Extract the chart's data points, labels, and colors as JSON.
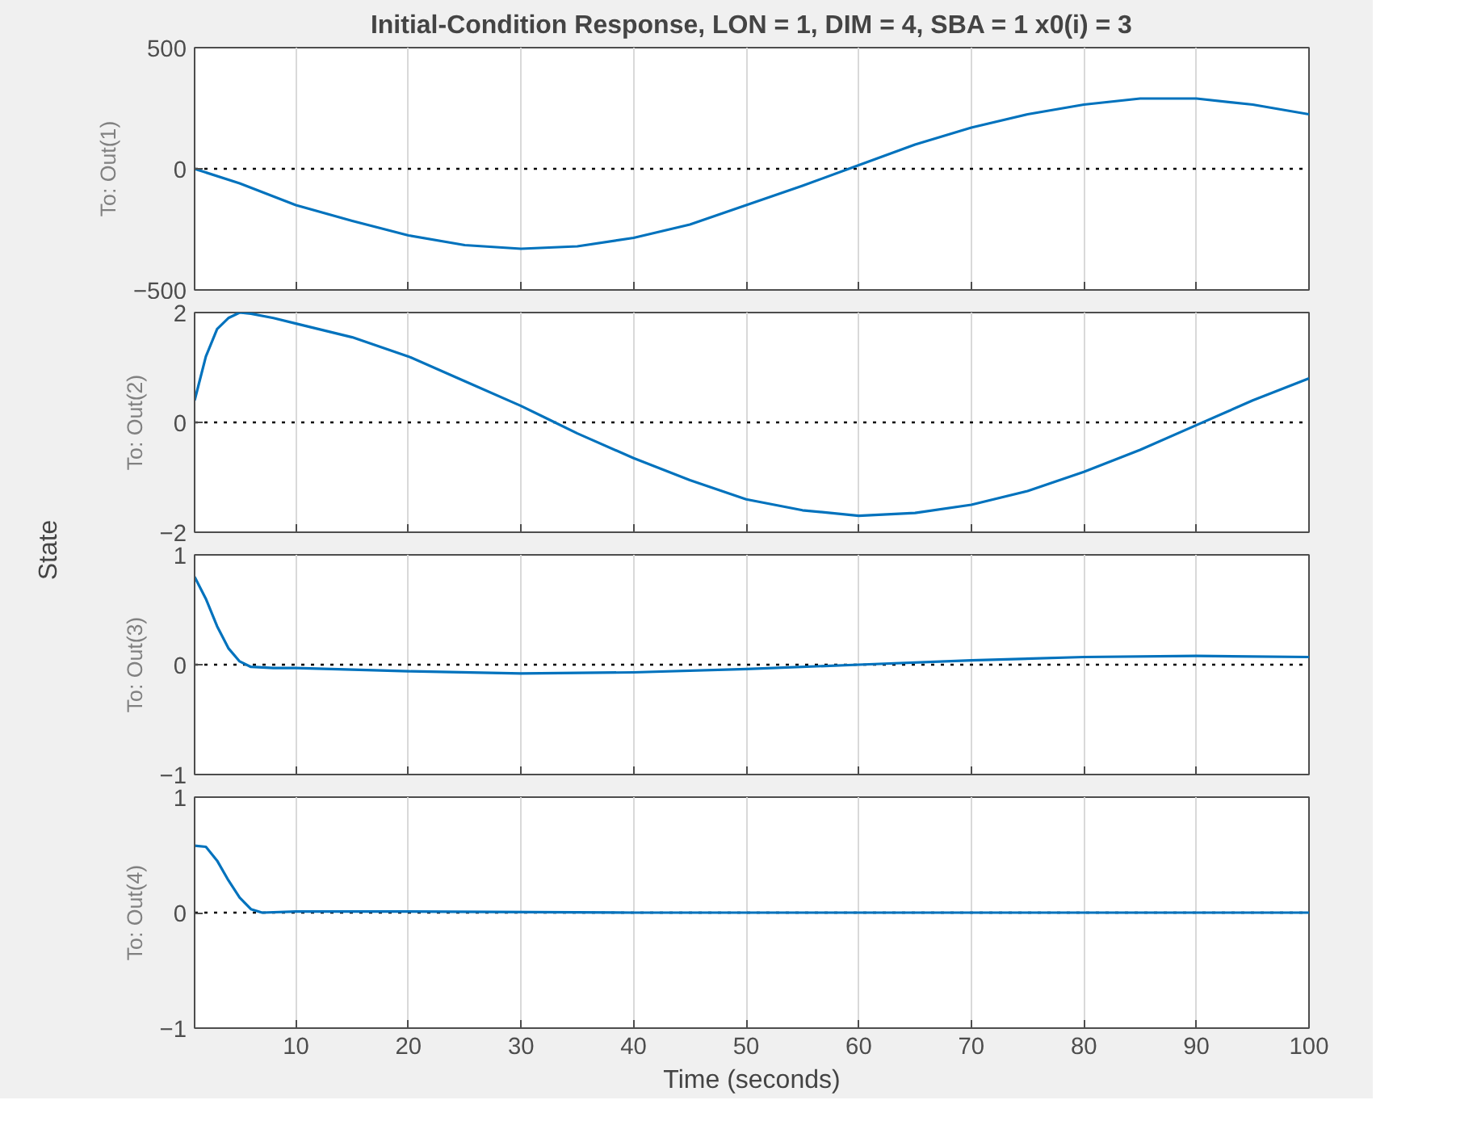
{
  "chart_data": [
    {
      "type": "line",
      "title": "Initial-Condition Response, LON = 1, DIM = 4, SBA = 1 x0(i) = 3",
      "ylabel": "To: Out(1)",
      "annotations": [
        "State"
      ],
      "x": [
        1,
        5,
        10,
        15,
        20,
        25,
        30,
        35,
        40,
        45,
        50,
        55,
        60,
        65,
        70,
        75,
        80,
        85,
        90,
        95,
        100
      ],
      "series": [
        {
          "color": "#0072bd",
          "values": [
            0,
            -60,
            -150,
            -215,
            -275,
            -315,
            -330,
            -320,
            -285,
            -230,
            -150,
            -70,
            15,
            100,
            170,
            225,
            265,
            290,
            290,
            265,
            225
          ]
        }
      ],
      "xlim": [
        1,
        100
      ],
      "xticks": [
        10,
        20,
        30,
        40,
        50,
        60,
        70,
        80,
        90,
        100
      ],
      "ylim": [
        -500,
        500
      ],
      "yticks": [
        -500,
        0,
        500
      ],
      "grid": "x",
      "tick_labels": "y",
      "line_style": "solid",
      "ref_lines": [
        {
          "axis": "y",
          "value": 0,
          "color": "#000000",
          "line_style": "dotted"
        }
      ]
    },
    {
      "type": "line",
      "ylabel": "To: Out(2)",
      "x": [
        1,
        2,
        3,
        4,
        5,
        6,
        8,
        10,
        15,
        20,
        25,
        30,
        33,
        35,
        40,
        45,
        50,
        55,
        60,
        65,
        70,
        75,
        80,
        85,
        90,
        95,
        100
      ],
      "series": [
        {
          "color": "#0072bd",
          "values": [
            0.4,
            1.2,
            1.7,
            1.9,
            2.0,
            1.98,
            1.9,
            1.8,
            1.55,
            1.2,
            0.75,
            0.3,
            0,
            -0.2,
            -0.65,
            -1.05,
            -1.4,
            -1.6,
            -1.7,
            -1.65,
            -1.5,
            -1.25,
            -0.9,
            -0.5,
            -0.05,
            0.4,
            0.8
          ]
        }
      ],
      "xlim": [
        1,
        100
      ],
      "xticks": [
        10,
        20,
        30,
        40,
        50,
        60,
        70,
        80,
        90,
        100
      ],
      "ylim": [
        -2,
        2
      ],
      "yticks": [
        -2,
        0,
        2
      ],
      "grid": "x",
      "tick_labels": "y",
      "line_style": "solid",
      "ref_lines": [
        {
          "axis": "y",
          "value": 0,
          "color": "#000000",
          "line_style": "dotted"
        }
      ]
    },
    {
      "type": "line",
      "ylabel": "To: Out(3)",
      "x": [
        1,
        2,
        3,
        4,
        5,
        6,
        8,
        10,
        20,
        30,
        40,
        50,
        60,
        70,
        80,
        90,
        100
      ],
      "series": [
        {
          "color": "#0072bd",
          "values": [
            0.8,
            0.6,
            0.35,
            0.15,
            0.03,
            -0.02,
            -0.03,
            -0.03,
            -0.06,
            -0.08,
            -0.07,
            -0.04,
            0,
            0.04,
            0.07,
            0.08,
            0.07
          ]
        }
      ],
      "xlim": [
        1,
        100
      ],
      "xticks": [
        10,
        20,
        30,
        40,
        50,
        60,
        70,
        80,
        90,
        100
      ],
      "ylim": [
        -1,
        1
      ],
      "yticks": [
        -1,
        0,
        1
      ],
      "grid": "x",
      "tick_labels": "y",
      "line_style": "solid",
      "ref_lines": [
        {
          "axis": "y",
          "value": 0,
          "color": "#000000",
          "line_style": "dotted"
        }
      ]
    },
    {
      "type": "line",
      "ylabel": "To: Out(4)",
      "xlabel": "Time (seconds)",
      "x": [
        1,
        2,
        3,
        4,
        5,
        6,
        7,
        10,
        20,
        40,
        60,
        80,
        100
      ],
      "series": [
        {
          "color": "#0072bd",
          "values": [
            0.58,
            0.57,
            0.45,
            0.28,
            0.13,
            0.03,
            0,
            0.01,
            0.01,
            0,
            0,
            0,
            0
          ]
        }
      ],
      "xlim": [
        1,
        100
      ],
      "xticks": [
        10,
        20,
        30,
        40,
        50,
        60,
        70,
        80,
        90,
        100
      ],
      "ylim": [
        -1,
        1
      ],
      "yticks": [
        -1,
        0,
        1
      ],
      "grid": "x",
      "line_style": "solid",
      "ref_lines": [
        {
          "axis": "y",
          "value": 0,
          "color": "#000000",
          "line_style": "dotted"
        }
      ]
    }
  ]
}
